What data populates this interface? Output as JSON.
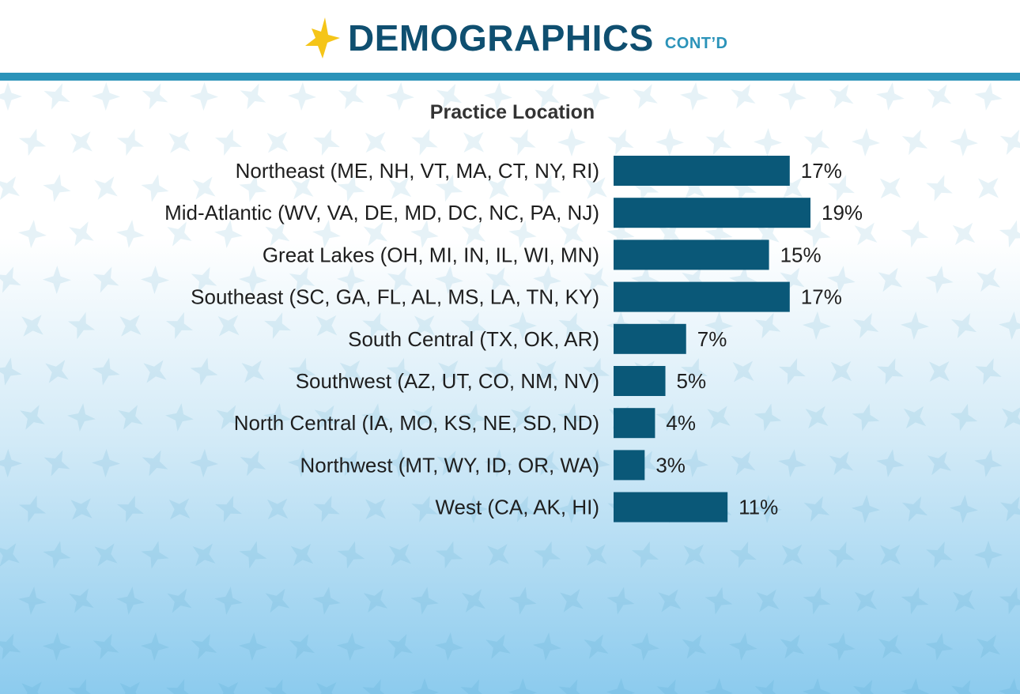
{
  "header": {
    "title": "DEMOGRAPHICS",
    "subtitle": "CONT’D",
    "logo_icon": "star-icon",
    "accent_color": "#2b93b9",
    "title_color": "#0f4f70",
    "star_color": "#f5c518"
  },
  "chart_data": {
    "type": "bar",
    "orientation": "horizontal",
    "title": "Practice Location",
    "categories": [
      "Northeast (ME, NH, VT, MA, CT, NY, RI)",
      "Mid-Atlantic (WV, VA, DE, MD, DC, NC, PA, NJ)",
      "Great Lakes (OH, MI, IN, IL, WI, MN)",
      "Southeast (SC, GA, FL, AL, MS, LA, TN, KY)",
      "South Central (TX, OK, AR)",
      "Southwest (AZ, UT, CO, NM, NV)",
      "North Central (IA, MO, KS, NE, SD, ND)",
      "Northwest (MT, WY, ID, OR, WA)",
      "West (CA, AK, HI)"
    ],
    "values": [
      17,
      19,
      15,
      17,
      7,
      5,
      4,
      3,
      11
    ],
    "value_labels": [
      "17%",
      "19%",
      "15%",
      "17%",
      "7%",
      "5%",
      "4%",
      "3%",
      "11%"
    ],
    "xlim": [
      0,
      19
    ],
    "grid": false,
    "bar_color": "#0a5878"
  }
}
